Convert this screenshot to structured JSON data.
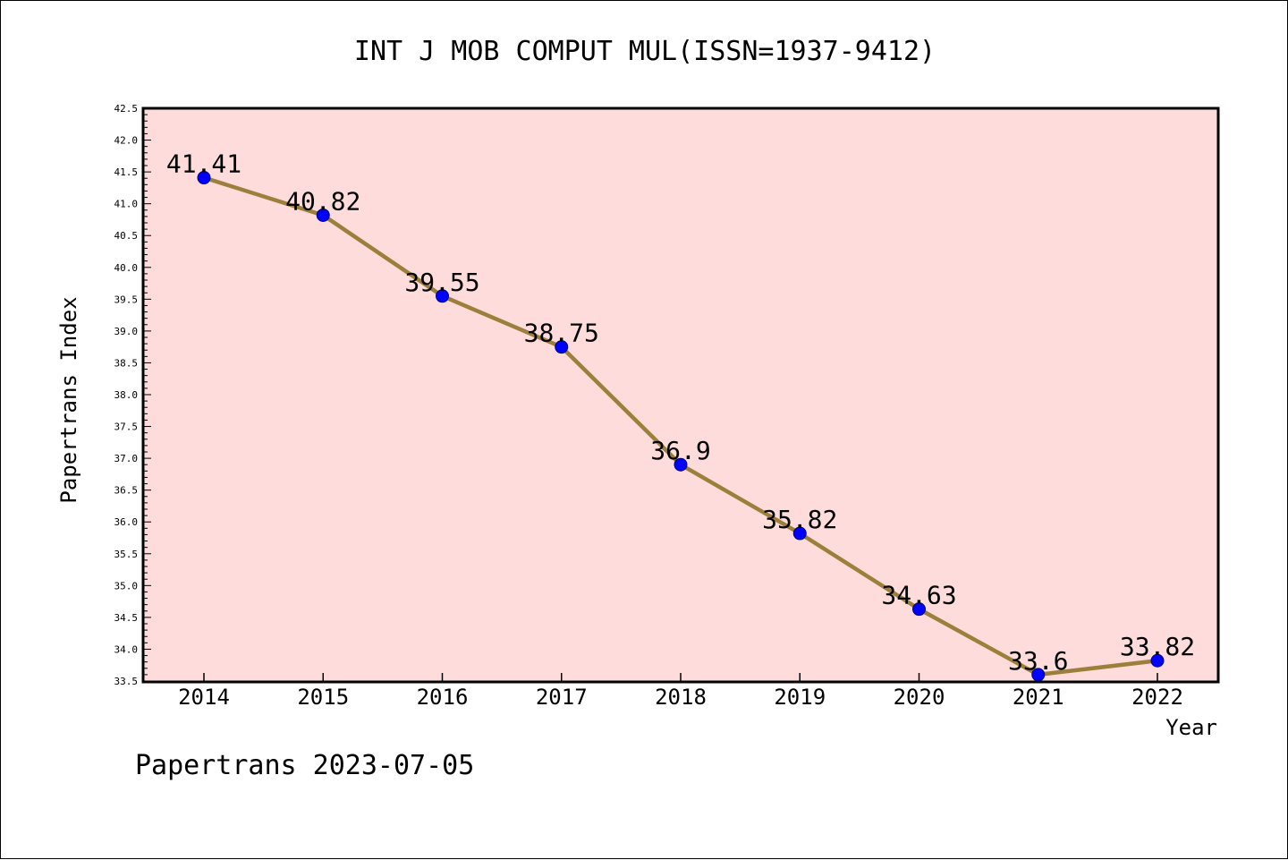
{
  "chart_data": {
    "type": "line",
    "title": "INT J MOB COMPUT MUL(ISSN=1937-9412)",
    "xlabel": "Year",
    "ylabel": "Papertrans Index",
    "categories": [
      "2014",
      "2015",
      "2016",
      "2017",
      "2018",
      "2019",
      "2020",
      "2021",
      "2022"
    ],
    "series": [
      {
        "values": [
          41.41,
          40.82,
          39.55,
          38.75,
          36.9,
          35.82,
          34.63,
          33.6,
          33.82
        ],
        "data_labels": [
          "41.41",
          "40.82",
          "39.55",
          "38.75",
          "36.9",
          "35.82",
          "34.63",
          "33.6",
          "33.82"
        ]
      }
    ],
    "ylim": [
      33.5,
      42.5
    ],
    "y_major_step": 0.5,
    "y_minor_step": 0.1,
    "y_tick_labels": [
      "33.5",
      "34.0",
      "34.5",
      "35.0",
      "35.5",
      "36.0",
      "36.5",
      "37.0",
      "37.5",
      "38.0",
      "38.5",
      "39.0",
      "39.5",
      "40.0",
      "40.5",
      "41.0",
      "41.5",
      "42.0",
      "42.5"
    ],
    "grid": false,
    "colors": {
      "plot_background": "#ffdcdc",
      "line": "#9b7f3a",
      "marker": "#0000ff",
      "axis": "#000000"
    }
  },
  "footer": {
    "text": "Papertrans 2023-07-05"
  }
}
